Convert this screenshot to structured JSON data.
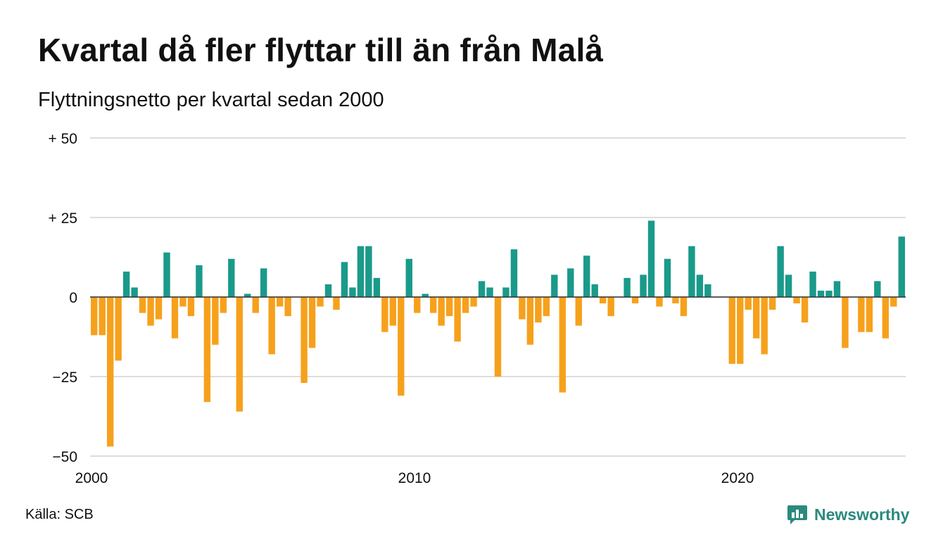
{
  "title": "Kvartal då fler flyttar till än från Malå",
  "subtitle": "Flyttningsnetto per kvartal sedan 2000",
  "source": "Källa: SCB",
  "brand": {
    "name": "Newsworthy",
    "icon": "bar-chart-speech-bubble-icon"
  },
  "colors": {
    "positive": "#1a9a8a",
    "negative": "#f6a11c",
    "grid": "#dddddd",
    "brand": "#2a8a7e"
  },
  "chart_data": {
    "type": "bar",
    "title": "Kvartal då fler flyttar till än från Malå",
    "subtitle": "Flyttningsnetto per kvartal sedan 2000",
    "xlabel": "",
    "ylabel": "",
    "ylim": [
      -50,
      50
    ],
    "yticks": [
      {
        "value": 50,
        "label": "+ 50"
      },
      {
        "value": 25,
        "label": "+ 25"
      },
      {
        "value": 0,
        "label": "0"
      },
      {
        "value": -25,
        "label": "−25"
      },
      {
        "value": -50,
        "label": "−50"
      }
    ],
    "xticks": [
      {
        "index": 0,
        "label": "2000"
      },
      {
        "index": 40,
        "label": "2010"
      },
      {
        "index": 80,
        "label": "2020"
      }
    ],
    "grid": true,
    "legend": "none",
    "start": "2000 Q1",
    "frequency": "quarterly",
    "series": [
      {
        "values": [
          -12,
          -12,
          -47,
          -20,
          8,
          3,
          -5,
          -9,
          -7,
          14,
          -13,
          -3,
          -6,
          10,
          -33,
          -15,
          -5,
          12,
          -36,
          1,
          -5,
          9,
          -18,
          -3,
          -6,
          0,
          -27,
          -16,
          -3,
          4,
          -4,
          11,
          3,
          16,
          16,
          6,
          -11,
          -9,
          -31,
          12,
          -5,
          1,
          -5,
          -9,
          -6,
          -14,
          -5,
          -3,
          5,
          3,
          -25,
          3,
          15,
          -7,
          -15,
          -8,
          -6,
          7,
          -30,
          9,
          -9,
          13,
          4,
          -2,
          -6,
          0,
          6,
          -2,
          7,
          24,
          -3,
          12,
          -2,
          -6,
          16,
          7,
          4,
          0,
          0,
          -21,
          -21,
          -4,
          -13,
          -18,
          -4,
          16,
          7,
          -2,
          -8,
          8,
          2,
          2,
          5,
          -16,
          0,
          -11,
          -11,
          5,
          -13,
          -3,
          19
        ]
      }
    ]
  }
}
